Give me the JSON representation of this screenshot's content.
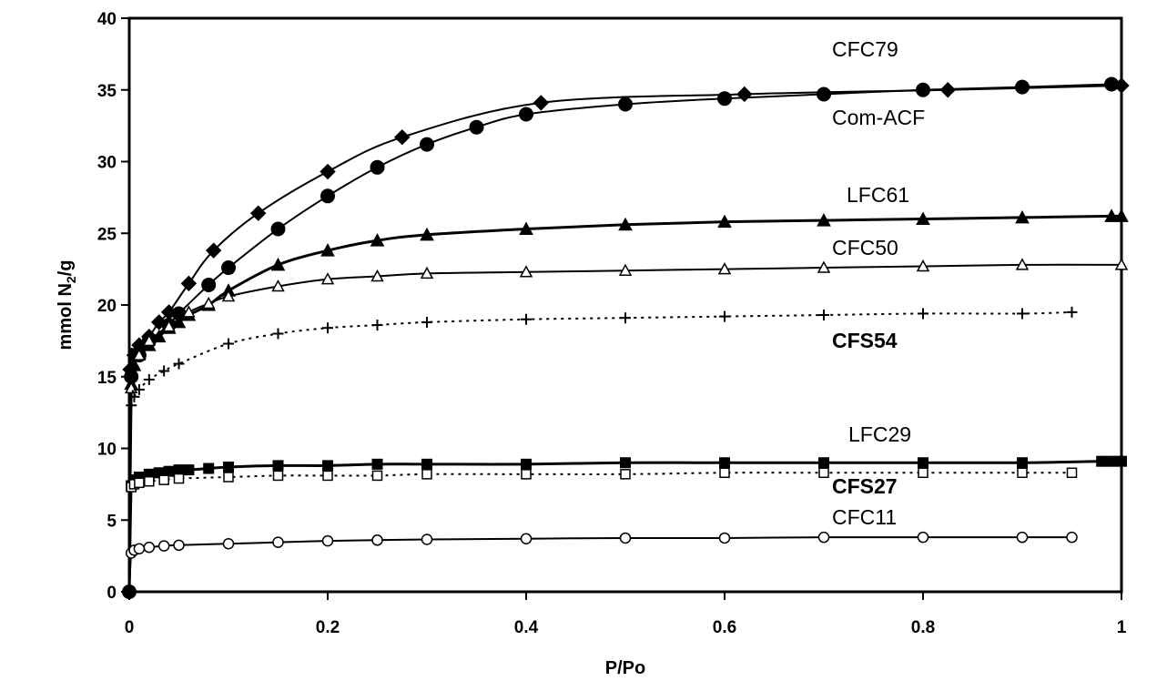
{
  "chart_data": {
    "type": "line",
    "xlabel": "P/Po",
    "ylabel_main": "mmol N",
    "ylabel_sub": "2",
    "ylabel_tail": "/g",
    "xlim": [
      0,
      1
    ],
    "ylim": [
      0,
      40
    ],
    "xticks": [
      0,
      0.2,
      0.4,
      0.6,
      0.8,
      1
    ],
    "xtick_labels": [
      "0",
      "0.2",
      "0.4",
      "0.6",
      "0.8",
      "1"
    ],
    "yticks": [
      0,
      5,
      10,
      15,
      20,
      25,
      30,
      35,
      40
    ],
    "ytick_labels": [
      "0",
      "5",
      "10",
      "15",
      "20",
      "25",
      "30",
      "35",
      "40"
    ],
    "grid": false,
    "series": [
      {
        "name": "CFC79",
        "marker": "diamond-filled",
        "line": "solid",
        "points": [
          [
            0,
            0
          ],
          [
            0.001,
            15.5
          ],
          [
            0.005,
            16.5
          ],
          [
            0.01,
            17.2
          ],
          [
            0.02,
            17.8
          ],
          [
            0.03,
            18.8
          ],
          [
            0.04,
            19.5
          ],
          [
            0.06,
            21.5
          ],
          [
            0.085,
            23.8
          ],
          [
            0.13,
            26.4
          ],
          [
            0.2,
            29.3
          ],
          [
            0.275,
            31.7
          ],
          [
            0.415,
            34.1
          ],
          [
            0.62,
            34.7
          ],
          [
            0.825,
            35.0
          ],
          [
            1.0,
            35.3
          ]
        ],
        "label_bold": false
      },
      {
        "name": "Com-ACF",
        "marker": "circle-filled",
        "line": "solid",
        "points": [
          [
            0,
            0
          ],
          [
            0.002,
            15.0
          ],
          [
            0.01,
            16.5
          ],
          [
            0.02,
            17.5
          ],
          [
            0.04,
            18.6
          ],
          [
            0.05,
            19.4
          ],
          [
            0.08,
            21.4
          ],
          [
            0.1,
            22.6
          ],
          [
            0.15,
            25.3
          ],
          [
            0.2,
            27.6
          ],
          [
            0.25,
            29.6
          ],
          [
            0.3,
            31.2
          ],
          [
            0.35,
            32.4
          ],
          [
            0.4,
            33.3
          ],
          [
            0.5,
            34.0
          ],
          [
            0.6,
            34.4
          ],
          [
            0.7,
            34.7
          ],
          [
            0.8,
            35.0
          ],
          [
            0.9,
            35.2
          ],
          [
            0.99,
            35.4
          ]
        ],
        "label_bold": false
      },
      {
        "name": "LFC61",
        "marker": "triangle-filled",
        "line": "solid",
        "points": [
          [
            0,
            0
          ],
          [
            0.002,
            14.5
          ],
          [
            0.005,
            15.8
          ],
          [
            0.01,
            16.6
          ],
          [
            0.02,
            17.2
          ],
          [
            0.03,
            17.8
          ],
          [
            0.04,
            18.4
          ],
          [
            0.05,
            18.8
          ],
          [
            0.06,
            19.3
          ],
          [
            0.08,
            20.0
          ],
          [
            0.1,
            21.0
          ],
          [
            0.15,
            22.8
          ],
          [
            0.2,
            23.8
          ],
          [
            0.25,
            24.5
          ],
          [
            0.3,
            24.9
          ],
          [
            0.4,
            25.3
          ],
          [
            0.5,
            25.6
          ],
          [
            0.6,
            25.8
          ],
          [
            0.7,
            25.9
          ],
          [
            0.8,
            26.0
          ],
          [
            0.9,
            26.1
          ],
          [
            0.99,
            26.2
          ],
          [
            1.0,
            26.2
          ]
        ],
        "label_bold": false
      },
      {
        "name": "CFC50",
        "marker": "triangle-open",
        "line": "solid",
        "points": [
          [
            0,
            0
          ],
          [
            0.002,
            14.2
          ],
          [
            0.01,
            16.5
          ],
          [
            0.02,
            17.5
          ],
          [
            0.04,
            18.5
          ],
          [
            0.06,
            19.5
          ],
          [
            0.08,
            20.1
          ],
          [
            0.1,
            20.6
          ],
          [
            0.15,
            21.3
          ],
          [
            0.2,
            21.8
          ],
          [
            0.25,
            22.0
          ],
          [
            0.3,
            22.2
          ],
          [
            0.4,
            22.3
          ],
          [
            0.5,
            22.4
          ],
          [
            0.6,
            22.5
          ],
          [
            0.7,
            22.6
          ],
          [
            0.8,
            22.7
          ],
          [
            0.9,
            22.8
          ],
          [
            1.0,
            22.8
          ]
        ],
        "label_bold": false
      },
      {
        "name": "CFS54",
        "marker": "plus",
        "line": "dotted",
        "points": [
          [
            0,
            0
          ],
          [
            0.002,
            13.0
          ],
          [
            0.005,
            13.6
          ],
          [
            0.01,
            14.1
          ],
          [
            0.02,
            14.8
          ],
          [
            0.035,
            15.4
          ],
          [
            0.05,
            15.9
          ],
          [
            0.1,
            17.3
          ],
          [
            0.15,
            18.0
          ],
          [
            0.2,
            18.4
          ],
          [
            0.25,
            18.6
          ],
          [
            0.3,
            18.8
          ],
          [
            0.4,
            19.0
          ],
          [
            0.5,
            19.1
          ],
          [
            0.6,
            19.2
          ],
          [
            0.7,
            19.3
          ],
          [
            0.8,
            19.4
          ],
          [
            0.9,
            19.4
          ],
          [
            0.95,
            19.5
          ]
        ],
        "label_bold": true
      },
      {
        "name": "LFC29",
        "marker": "square-filled",
        "line": "solid",
        "points": [
          [
            0,
            0
          ],
          [
            0.002,
            7.4
          ],
          [
            0.005,
            7.8
          ],
          [
            0.01,
            8.0
          ],
          [
            0.02,
            8.2
          ],
          [
            0.03,
            8.3
          ],
          [
            0.04,
            8.4
          ],
          [
            0.05,
            8.5
          ],
          [
            0.06,
            8.5
          ],
          [
            0.08,
            8.6
          ],
          [
            0.1,
            8.7
          ],
          [
            0.15,
            8.8
          ],
          [
            0.2,
            8.8
          ],
          [
            0.25,
            8.9
          ],
          [
            0.3,
            8.9
          ],
          [
            0.4,
            8.9
          ],
          [
            0.5,
            9.0
          ],
          [
            0.6,
            9.0
          ],
          [
            0.7,
            9.0
          ],
          [
            0.8,
            9.0
          ],
          [
            0.9,
            9.0
          ],
          [
            0.98,
            9.1
          ],
          [
            0.99,
            9.1
          ],
          [
            1.0,
            9.1
          ]
        ],
        "label_bold": false
      },
      {
        "name": "CFS27",
        "marker": "square-open",
        "line": "dotted",
        "points": [
          [
            0,
            0
          ],
          [
            0.002,
            7.3
          ],
          [
            0.005,
            7.5
          ],
          [
            0.01,
            7.6
          ],
          [
            0.02,
            7.7
          ],
          [
            0.035,
            7.8
          ],
          [
            0.05,
            7.9
          ],
          [
            0.1,
            8.0
          ],
          [
            0.15,
            8.1
          ],
          [
            0.2,
            8.1
          ],
          [
            0.25,
            8.1
          ],
          [
            0.3,
            8.2
          ],
          [
            0.4,
            8.2
          ],
          [
            0.5,
            8.2
          ],
          [
            0.6,
            8.3
          ],
          [
            0.7,
            8.3
          ],
          [
            0.8,
            8.3
          ],
          [
            0.9,
            8.3
          ],
          [
            0.95,
            8.3
          ]
        ],
        "label_bold": true
      },
      {
        "name": "CFC11",
        "marker": "circle-open",
        "line": "solid",
        "points": [
          [
            0,
            0
          ],
          [
            0.002,
            2.7
          ],
          [
            0.005,
            2.9
          ],
          [
            0.01,
            3.0
          ],
          [
            0.02,
            3.1
          ],
          [
            0.035,
            3.2
          ],
          [
            0.05,
            3.25
          ],
          [
            0.1,
            3.35
          ],
          [
            0.15,
            3.45
          ],
          [
            0.2,
            3.55
          ],
          [
            0.25,
            3.6
          ],
          [
            0.3,
            3.65
          ],
          [
            0.4,
            3.7
          ],
          [
            0.5,
            3.75
          ],
          [
            0.6,
            3.75
          ],
          [
            0.7,
            3.8
          ],
          [
            0.8,
            3.8
          ],
          [
            0.9,
            3.8
          ],
          [
            0.95,
            3.8
          ]
        ],
        "label_bold": false
      }
    ]
  }
}
